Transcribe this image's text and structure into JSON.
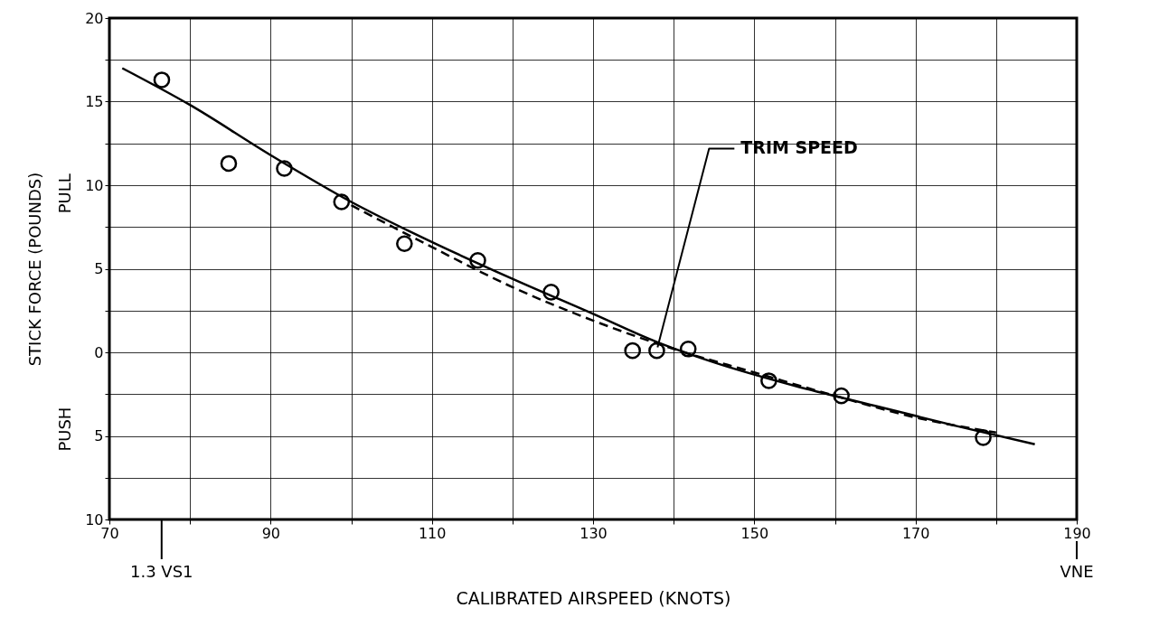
{
  "chart_data": {
    "type": "line",
    "xlabel": "CALIBRATED AIRSPEED (KNOTS)",
    "ylabel": "STICK FORCE (POUNDS)",
    "xlim": [
      70,
      190
    ],
    "ylim": [
      -10,
      20
    ],
    "xticks": [
      70,
      {
        "value": 80,
        "label": null
      },
      90,
      {
        "value": 100,
        "label": null
      },
      110,
      {
        "value": 120,
        "label": null
      },
      130,
      {
        "value": 140,
        "label": null
      },
      150,
      {
        "value": 160,
        "label": null
      },
      170,
      {
        "value": 180,
        "label": null
      },
      190
    ],
    "yticks": [
      {
        "value": -10,
        "label": "10"
      },
      {
        "value": -7.5,
        "label": null
      },
      {
        "value": -5,
        "label": "5"
      },
      {
        "value": -2.5,
        "label": null
      },
      0,
      {
        "value": 2.5,
        "label": null
      },
      5,
      {
        "value": 7.5,
        "label": null
      },
      10,
      {
        "value": 12.5,
        "label": null
      },
      15,
      {
        "value": 17.5,
        "label": null
      },
      20
    ],
    "grid": true,
    "series": [
      {
        "type": "scatter",
        "marker": "circle",
        "color": "#000000",
        "x": [
          76.5,
          84.8,
          91.7,
          98.8,
          106.6,
          115.7,
          124.8,
          134.9,
          137.9,
          141.8,
          151.8,
          160.8,
          178.4
        ],
        "values": [
          16.3,
          11.3,
          11.0,
          9.0,
          6.5,
          5.5,
          3.6,
          0.1,
          0.1,
          0.2,
          -1.7,
          -2.6,
          -5.1
        ]
      },
      {
        "line_style": "solid",
        "color": "#000000",
        "x": [
          71.6,
          80,
          90,
          100,
          110,
          120,
          130,
          138,
          145,
          155,
          165,
          175,
          184.8
        ],
        "values": [
          17.0,
          14.8,
          11.8,
          9.0,
          6.6,
          4.4,
          2.3,
          0.6,
          -0.6,
          -2.0,
          -3.2,
          -4.4,
          -5.5
        ]
      },
      {
        "line_style": "dashed",
        "color": "#000000",
        "x": [
          100,
          110,
          120,
          130,
          140,
          150,
          160,
          170,
          180
        ],
        "values": [
          8.8,
          6.3,
          3.9,
          1.9,
          0.2,
          -1.2,
          -2.6,
          -3.9,
          -4.8
        ]
      }
    ],
    "annotations": [
      "PULL",
      "PUSH",
      {
        "text": "TRIM SPEED",
        "x": 138,
        "y": 0.3
      },
      "1.3 VS1",
      "VNE"
    ]
  }
}
